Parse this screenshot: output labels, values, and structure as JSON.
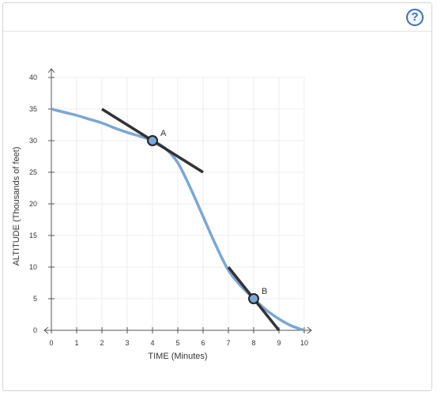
{
  "toolbar": {
    "help_label": "?"
  },
  "chart_data": {
    "type": "line",
    "xlabel": "TIME (Minutes)",
    "ylabel": "ALTITUDE (Thousands of feet)",
    "xlim": [
      0,
      10
    ],
    "ylim": [
      0,
      40
    ],
    "x_ticks": [
      0,
      1,
      2,
      3,
      4,
      5,
      6,
      7,
      8,
      9,
      10
    ],
    "y_ticks": [
      0,
      5,
      10,
      15,
      20,
      25,
      30,
      35,
      40
    ],
    "grid": true,
    "curve": {
      "color": "#7ba7d4",
      "x": [
        0,
        0.5,
        1,
        1.5,
        2,
        2.5,
        3,
        3.5,
        4,
        4.5,
        5,
        5.5,
        6,
        6.5,
        7,
        7.5,
        8,
        8.5,
        9,
        9.5,
        10
      ],
      "y": [
        35,
        34.5,
        34,
        33.4,
        32.8,
        32,
        31.3,
        30.7,
        30,
        28.8,
        26.5,
        22.5,
        18,
        13.5,
        9.5,
        7,
        5,
        3.2,
        1.8,
        0.7,
        0
      ]
    },
    "points": [
      {
        "label": "A",
        "x": 4,
        "y": 30
      },
      {
        "label": "B",
        "x": 8,
        "y": 5
      }
    ],
    "tangents": [
      {
        "x": [
          2,
          6
        ],
        "y": [
          35,
          25
        ]
      },
      {
        "x": [
          7,
          9
        ],
        "y": [
          10,
          0
        ]
      }
    ]
  }
}
